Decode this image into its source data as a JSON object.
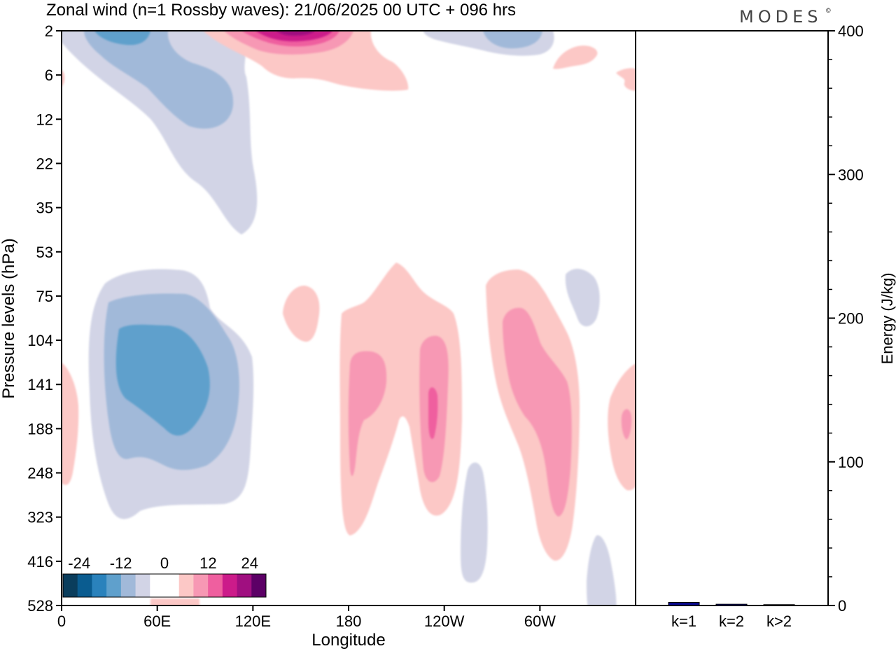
{
  "title": "Zonal wind (n=1 Rossby waves):  21/06/2025  00 UTC  + 096 hrs",
  "logo": "MODES",
  "logo_mark": "©",
  "chart_data": [
    {
      "type": "contourf",
      "xlabel": "Longitude",
      "ylabel": "Pressure levels (hPa)",
      "x_ticks": [
        "0",
        "60E",
        "120E",
        "180",
        "120W",
        "60W"
      ],
      "y_ticks": [
        "2",
        "6",
        "12",
        "22",
        "35",
        "53",
        "75",
        "104",
        "141",
        "188",
        "248",
        "323",
        "416",
        "528"
      ],
      "x_range_deg_east": [
        0,
        360
      ],
      "y_axis_order": "top = 2 hPa, bottom = 528 hPa",
      "colorbar": {
        "tick_labels": [
          "-24",
          "-12",
          "0",
          "12",
          "24"
        ],
        "colors": [
          "#0a3d5c",
          "#0a5c90",
          "#2a82bc",
          "#5fa0cc",
          "#a1b9d9",
          "#d2d4e6",
          "#ffffff",
          "#ffffff",
          "#fcc8c6",
          "#f798b4",
          "#ef5f9f",
          "#cc1b8a",
          "#a00f80",
          "#5c0066"
        ]
      },
      "regions": [
        {
          "sign": "negative",
          "peak_m_s": -12,
          "lon_range": [
            0,
            120
          ],
          "p_range_hpa": [
            2,
            53
          ]
        },
        {
          "sign": "positive",
          "peak_m_s": 20,
          "lon_range": [
            115,
            195
          ],
          "p_range_hpa": [
            2,
            6
          ]
        },
        {
          "sign": "negative",
          "peak_m_s": -8,
          "lon_range": [
            230,
            295
          ],
          "p_range_hpa": [
            2,
            4
          ]
        },
        {
          "sign": "negative",
          "peak_m_s": -12,
          "lon_range": [
            15,
            120
          ],
          "p_range_hpa": [
            53,
            340
          ]
        },
        {
          "sign": "positive",
          "peak_m_s": 4,
          "lon_range": [
            140,
            160
          ],
          "p_range_hpa": [
            75,
            104
          ]
        },
        {
          "sign": "positive",
          "peak_m_s": 8,
          "lon_range": [
            175,
            260
          ],
          "p_range_hpa": [
            53,
            400
          ]
        },
        {
          "sign": "positive",
          "peak_m_s": 12,
          "lon_range": [
            260,
            275
          ],
          "p_range_hpa": [
            120,
            248
          ]
        },
        {
          "sign": "positive",
          "peak_m_s": 8,
          "lon_range": [
            270,
            325
          ],
          "p_range_hpa": [
            60,
            440
          ]
        },
        {
          "sign": "negative",
          "peak_m_s": -4,
          "lon_range": [
            315,
            340
          ],
          "p_range_hpa": [
            60,
            110
          ]
        },
        {
          "sign": "negative",
          "peak_m_s": -4,
          "lon_range": [
            250,
            265
          ],
          "p_range_hpa": [
            230,
            450
          ]
        },
        {
          "sign": "negative",
          "peak_m_s": -4,
          "lon_range": [
            330,
            350
          ],
          "p_range_hpa": [
            400,
            528
          ]
        },
        {
          "sign": "positive",
          "peak_m_s": 8,
          "lon_range": [
            345,
            360
          ],
          "p_range_hpa": [
            130,
            250
          ]
        },
        {
          "sign": "positive",
          "peak_m_s": 4,
          "lon_range": [
            0,
            10
          ],
          "p_range_hpa": [
            130,
            250
          ]
        }
      ]
    },
    {
      "type": "bar",
      "ylabel": "Energy (J/kg)",
      "categories": [
        "k=1",
        "k=2",
        "k>2"
      ],
      "values": [
        2.2,
        0.9,
        0.6
      ],
      "ylim": [
        0,
        400
      ],
      "y_ticks": [
        "0",
        "100",
        "200",
        "300",
        "400"
      ],
      "bar_color": "#0a0a8c"
    }
  ]
}
